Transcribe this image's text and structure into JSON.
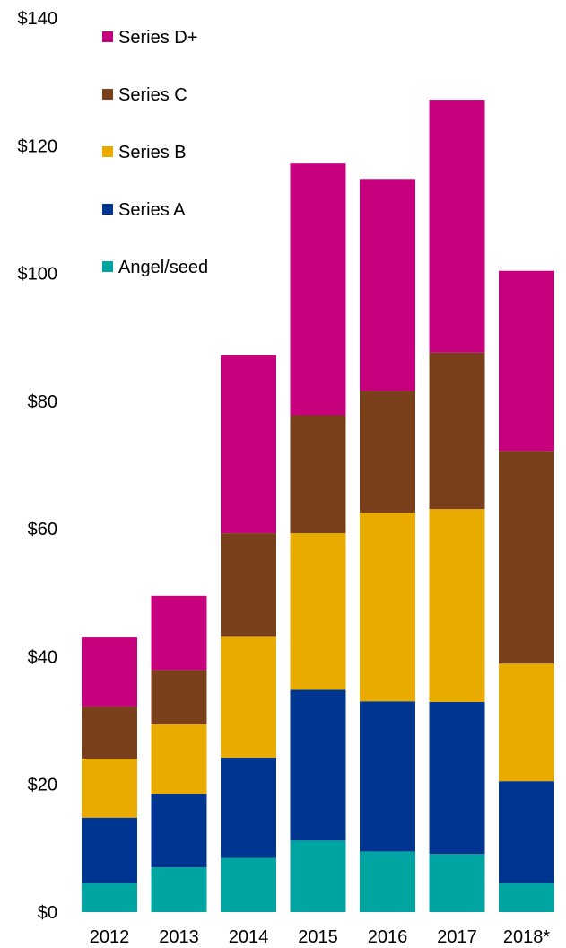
{
  "chart_data": {
    "type": "bar",
    "stacked": true,
    "categories": [
      "2012",
      "2013",
      "2014",
      "2015",
      "2016",
      "2017",
      "2018*"
    ],
    "series": [
      {
        "name": "Angel/seed",
        "color": "#00a5a2",
        "values": [
          4.5,
          7,
          8.5,
          11.2,
          9.5,
          9.1,
          4.5
        ]
      },
      {
        "name": "Series A",
        "color": "#003591",
        "values": [
          10.3,
          11.5,
          15.7,
          23.6,
          23.5,
          23.8,
          16.0
        ]
      },
      {
        "name": "Series B",
        "color": "#e9ab00",
        "values": [
          9.2,
          10.9,
          18.9,
          24.5,
          29.5,
          30.2,
          18.4
        ]
      },
      {
        "name": "Series C",
        "color": "#7a401b",
        "values": [
          8.2,
          8.5,
          16.2,
          18.5,
          19.1,
          24.5,
          33.3
        ]
      },
      {
        "name": "Series D+",
        "color": "#c7007d",
        "values": [
          10.8,
          11.6,
          27.9,
          39.4,
          33.2,
          39.6,
          28.2
        ]
      }
    ],
    "y_ticks": [
      "$0",
      "$20",
      "$40",
      "$60",
      "$80",
      "$100",
      "$120",
      "$140"
    ],
    "ylim": [
      0,
      140
    ],
    "grid": false,
    "legend_position": "top-left",
    "title": "",
    "xlabel": "",
    "ylabel": ""
  }
}
